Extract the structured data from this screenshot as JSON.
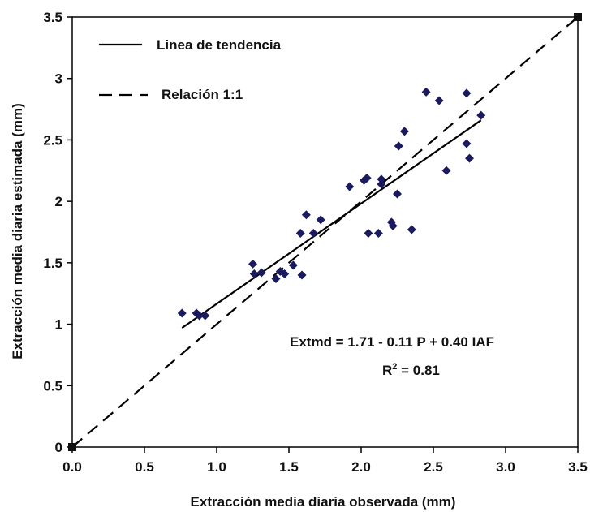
{
  "chart_data": {
    "type": "scatter",
    "xlabel": "Extracción media diaria observada (mm)",
    "ylabel": "Extracción media diaria estimada (mm)",
    "xlim": [
      0,
      3.5
    ],
    "ylim": [
      0,
      3.5
    ],
    "x_ticks": [
      "0.0",
      "0.5",
      "1.0",
      "1.5",
      "2.0",
      "2.5",
      "3.0",
      "3.5"
    ],
    "y_ticks": [
      "0",
      "0.5",
      "1",
      "1.5",
      "2",
      "2.5",
      "3",
      "3.5"
    ],
    "grid": false,
    "legend_position": "top-left",
    "legend": [
      {
        "label": "Linea de tendencia",
        "style": "solid"
      },
      {
        "label": "Relación 1:1",
        "style": "dashed"
      }
    ],
    "points": [
      {
        "x": 0.76,
        "y": 1.09
      },
      {
        "x": 0.86,
        "y": 1.09
      },
      {
        "x": 0.88,
        "y": 1.07
      },
      {
        "x": 0.92,
        "y": 1.07
      },
      {
        "x": 1.25,
        "y": 1.49
      },
      {
        "x": 1.26,
        "y": 1.41
      },
      {
        "x": 1.31,
        "y": 1.42
      },
      {
        "x": 1.41,
        "y": 1.37
      },
      {
        "x": 1.44,
        "y": 1.43
      },
      {
        "x": 1.47,
        "y": 1.41
      },
      {
        "x": 1.53,
        "y": 1.48
      },
      {
        "x": 1.59,
        "y": 1.4
      },
      {
        "x": 1.58,
        "y": 1.74
      },
      {
        "x": 1.62,
        "y": 1.89
      },
      {
        "x": 1.67,
        "y": 1.74
      },
      {
        "x": 1.72,
        "y": 1.85
      },
      {
        "x": 1.92,
        "y": 2.12
      },
      {
        "x": 2.02,
        "y": 2.17
      },
      {
        "x": 2.04,
        "y": 2.19
      },
      {
        "x": 2.05,
        "y": 1.74
      },
      {
        "x": 2.12,
        "y": 1.74
      },
      {
        "x": 2.14,
        "y": 2.18
      },
      {
        "x": 2.14,
        "y": 2.14
      },
      {
        "x": 2.21,
        "y": 1.83
      },
      {
        "x": 2.22,
        "y": 1.8
      },
      {
        "x": 2.25,
        "y": 2.06
      },
      {
        "x": 2.26,
        "y": 2.45
      },
      {
        "x": 2.3,
        "y": 2.57
      },
      {
        "x": 2.35,
        "y": 1.77
      },
      {
        "x": 2.45,
        "y": 2.89
      },
      {
        "x": 2.54,
        "y": 2.82
      },
      {
        "x": 2.59,
        "y": 2.25
      },
      {
        "x": 2.73,
        "y": 2.47
      },
      {
        "x": 2.73,
        "y": 2.88
      },
      {
        "x": 2.75,
        "y": 2.35
      },
      {
        "x": 2.83,
        "y": 2.7
      }
    ],
    "trendline": {
      "x": [
        0.76,
        2.83
      ],
      "y": [
        0.97,
        2.66
      ]
    },
    "identity_line": {
      "x": [
        0,
        3.5
      ],
      "y": [
        0,
        3.5
      ]
    },
    "identity_markers": [
      {
        "x": 0,
        "y": 0
      },
      {
        "x": 3.5,
        "y": 3.5
      }
    ],
    "annotation": {
      "equation": "Extmd = 1.71 - 0.11 P + 0.40 IAF",
      "r2_base": "R",
      "r2_sup": "2",
      "r2_value": " = 0.81"
    },
    "colors": {
      "points": "#1a1a5e",
      "lines": "#000000"
    }
  }
}
